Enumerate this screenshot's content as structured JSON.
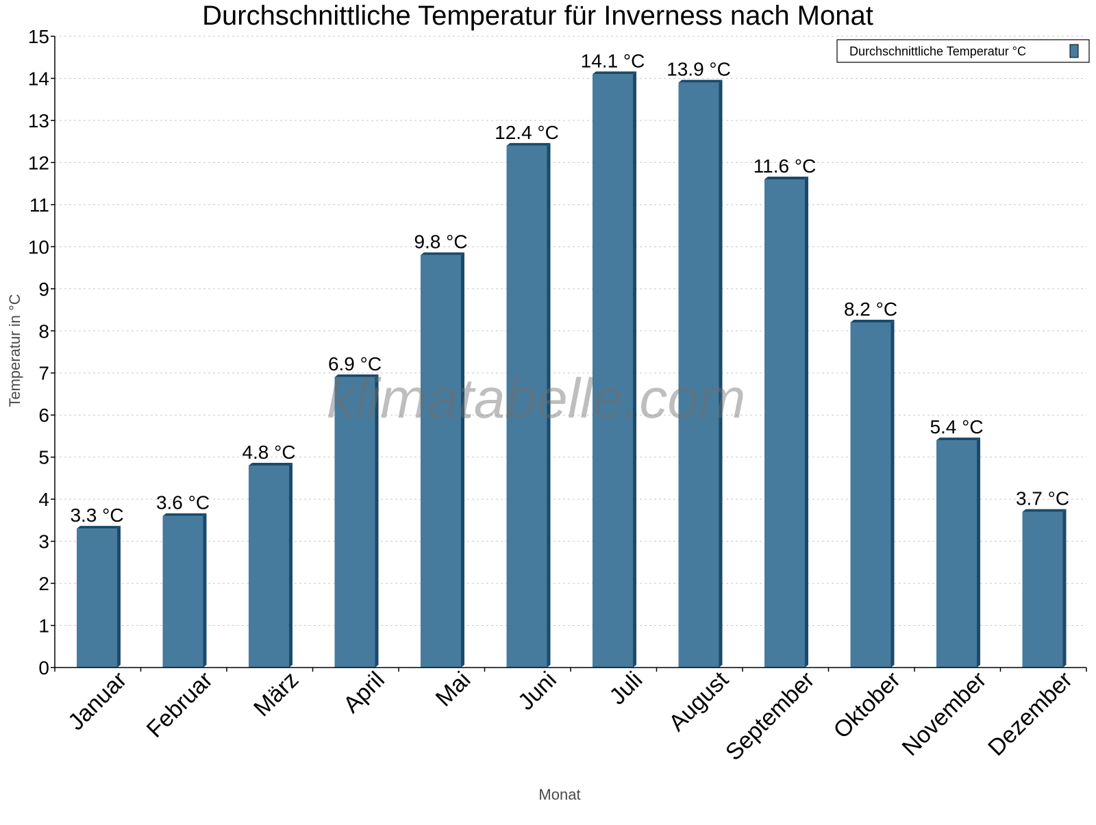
{
  "chart_data": {
    "type": "bar",
    "title": "Durchschnittliche Temperatur für Inverness nach Monat",
    "xlabel": "Monat",
    "ylabel": "Temperatur in °C",
    "ylim": [
      0,
      15
    ],
    "yticks": [
      "0",
      "1",
      "2",
      "3",
      "4",
      "5",
      "6",
      "7",
      "8",
      "9",
      "10",
      "11",
      "12",
      "13",
      "14",
      "15"
    ],
    "grid": true,
    "legend_position": "top-right",
    "categories": [
      "Januar",
      "Februar",
      "März",
      "April",
      "Mai",
      "Juni",
      "Juli",
      "August",
      "September",
      "Oktober",
      "November",
      "Dezember"
    ],
    "series": [
      {
        "name": "Durchschnittliche Temperatur °C",
        "values": [
          3.3,
          3.6,
          4.8,
          6.9,
          9.8,
          12.4,
          14.1,
          13.9,
          11.6,
          8.2,
          5.4,
          3.7
        ],
        "labels": [
          "3.3 °C",
          "3.6 °C",
          "4.8 °C",
          "6.9 °C",
          "9.8 °C",
          "12.4 °C",
          "14.1 °C",
          "13.9 °C",
          "11.6 °C",
          "8.2 °C",
          "5.4 °C",
          "3.7 °C"
        ],
        "color": "#467b9d",
        "side_color": "#1a4a6b"
      }
    ],
    "watermark": "klimatabelle.com"
  }
}
